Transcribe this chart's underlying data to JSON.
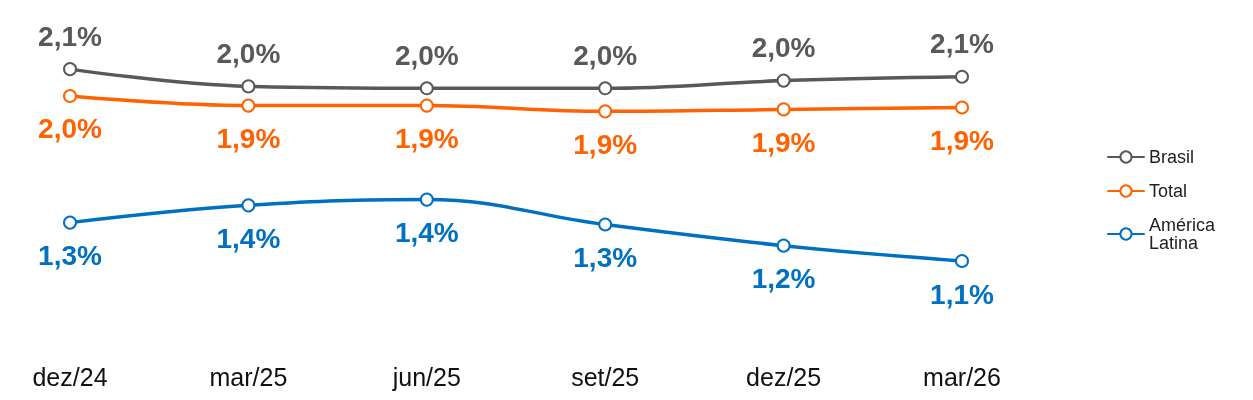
{
  "chart_data": {
    "type": "line",
    "categories": [
      "dez/24",
      "mar/25",
      "jun/25",
      "set/25",
      "dez/25",
      "mar/26"
    ],
    "series": [
      {
        "name": "Brasil",
        "color": "#595959",
        "values": [
          2.1,
          2.01,
          2.0,
          2.0,
          2.04,
          2.06
        ],
        "value_labels": [
          "2,1%",
          "2,0%",
          "2,0%",
          "2,0%",
          "2,0%",
          "2,1%"
        ]
      },
      {
        "name": "Total",
        "color": "#ff6200",
        "values": [
          1.96,
          1.91,
          1.91,
          1.88,
          1.89,
          1.9
        ],
        "value_labels": [
          "2,0%",
          "1,9%",
          "1,9%",
          "1,9%",
          "1,9%",
          "1,9%"
        ]
      },
      {
        "name": "América Latina",
        "color": "#0070c0",
        "values": [
          1.3,
          1.39,
          1.42,
          1.29,
          1.18,
          1.1
        ],
        "value_labels": [
          "1,3%",
          "1,4%",
          "1,4%",
          "1,3%",
          "1,2%",
          "1,1%"
        ]
      }
    ],
    "legend": "right",
    "marker": "circle",
    "line_style": "solid",
    "grid": false
  }
}
